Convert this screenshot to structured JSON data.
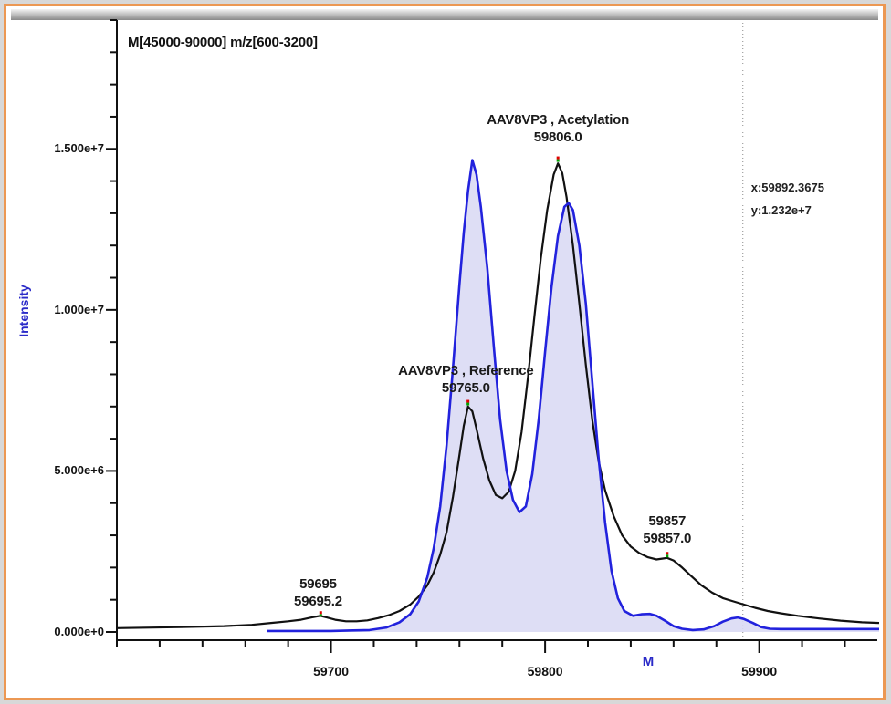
{
  "window": {
    "border_color": "#EC9853",
    "outer_bg": "#d8d8d8",
    "inner_bg": "#ffffff"
  },
  "title": "M[45000-90000] m/z[600-3200]",
  "cursor_readout": {
    "x_text": "x:59892.3675",
    "y_text": "y:1.232e+7",
    "mass": 59892.3675
  },
  "chart_data": {
    "type": "line",
    "title": "M[45000-90000] m/z[600-3200]",
    "xlabel": "M",
    "ylabel": "Intensity",
    "xlim": [
      59600,
      59956
    ],
    "ylim": [
      0,
      19000000
    ],
    "grid": false,
    "x_major_ticks": [
      {
        "value": 59700,
        "label": "59700"
      },
      {
        "value": 59800,
        "label": "59800"
      },
      {
        "value": 59900,
        "label": "59900"
      }
    ],
    "x_minor_step": 20,
    "y_major_ticks": [
      {
        "value": 0,
        "label": "0.000e+0"
      },
      {
        "value": 5000000,
        "label": "5.000e+6"
      },
      {
        "value": 10000000,
        "label": "1.000e+7"
      },
      {
        "value": 15000000,
        "label": "1.500e+7"
      }
    ],
    "y_minor_step": 1000000,
    "axis_title_color": "#2a2ac8",
    "series": [
      {
        "name": "Reference (blue filled trace)",
        "color": "#2222DD",
        "fill": "#DADAF4",
        "points": [
          [
            59670,
            30000
          ],
          [
            59700,
            30000
          ],
          [
            59718,
            60000
          ],
          [
            59726,
            140000
          ],
          [
            59732,
            300000
          ],
          [
            59737,
            550000
          ],
          [
            59741,
            950000
          ],
          [
            59745,
            1700000
          ],
          [
            59748,
            2600000
          ],
          [
            59751,
            3900000
          ],
          [
            59754,
            5800000
          ],
          [
            59757,
            8200000
          ],
          [
            59760,
            10800000
          ],
          [
            59762,
            12400000
          ],
          [
            59764,
            13700000
          ],
          [
            59766,
            14650000
          ],
          [
            59768,
            14200000
          ],
          [
            59770,
            13200000
          ],
          [
            59773,
            11300000
          ],
          [
            59776,
            8900000
          ],
          [
            59779,
            6600000
          ],
          [
            59782,
            5000000
          ],
          [
            59785,
            4100000
          ],
          [
            59788,
            3720000
          ],
          [
            59791,
            3900000
          ],
          [
            59794,
            4900000
          ],
          [
            59797,
            6600000
          ],
          [
            59800,
            8700000
          ],
          [
            59803,
            10700000
          ],
          [
            59806,
            12300000
          ],
          [
            59809,
            13200000
          ],
          [
            59811,
            13320000
          ],
          [
            59813,
            13100000
          ],
          [
            59816,
            12000000
          ],
          [
            59819,
            10200000
          ],
          [
            59822,
            7800000
          ],
          [
            59825,
            5400000
          ],
          [
            59828,
            3400000
          ],
          [
            59831,
            1900000
          ],
          [
            59834,
            1050000
          ],
          [
            59837,
            650000
          ],
          [
            59841,
            500000
          ],
          [
            59845,
            550000
          ],
          [
            59849,
            560000
          ],
          [
            59852,
            500000
          ],
          [
            59856,
            350000
          ],
          [
            59860,
            180000
          ],
          [
            59864,
            100000
          ],
          [
            59869,
            60000
          ],
          [
            59874,
            80000
          ],
          [
            59879,
            180000
          ],
          [
            59883,
            320000
          ],
          [
            59887,
            420000
          ],
          [
            59890,
            450000
          ],
          [
            59893,
            400000
          ],
          [
            59897,
            280000
          ],
          [
            59901,
            150000
          ],
          [
            59905,
            100000
          ],
          [
            59910,
            90000
          ],
          [
            59920,
            90000
          ],
          [
            59956,
            90000
          ]
        ]
      },
      {
        "name": "Acetylation (black trace)",
        "color": "#111111",
        "fill": null,
        "points": [
          [
            59600,
            120000
          ],
          [
            59630,
            150000
          ],
          [
            59650,
            180000
          ],
          [
            59663,
            220000
          ],
          [
            59672,
            280000
          ],
          [
            59680,
            330000
          ],
          [
            59686,
            380000
          ],
          [
            59691,
            450000
          ],
          [
            59695,
            500000
          ],
          [
            59698,
            450000
          ],
          [
            59702,
            380000
          ],
          [
            59707,
            330000
          ],
          [
            59712,
            330000
          ],
          [
            59717,
            360000
          ],
          [
            59722,
            430000
          ],
          [
            59727,
            520000
          ],
          [
            59732,
            650000
          ],
          [
            59737,
            850000
          ],
          [
            59741,
            1100000
          ],
          [
            59745,
            1450000
          ],
          [
            59748,
            1850000
          ],
          [
            59751,
            2400000
          ],
          [
            59754,
            3100000
          ],
          [
            59757,
            4200000
          ],
          [
            59760,
            5500000
          ],
          [
            59762,
            6400000
          ],
          [
            59764,
            7000000
          ],
          [
            59766,
            6850000
          ],
          [
            59768,
            6300000
          ],
          [
            59771,
            5400000
          ],
          [
            59774,
            4700000
          ],
          [
            59777,
            4250000
          ],
          [
            59780,
            4150000
          ],
          [
            59783,
            4350000
          ],
          [
            59786,
            5000000
          ],
          [
            59789,
            6200000
          ],
          [
            59792,
            7900000
          ],
          [
            59795,
            9800000
          ],
          [
            59798,
            11600000
          ],
          [
            59801,
            13100000
          ],
          [
            59804,
            14200000
          ],
          [
            59806,
            14550000
          ],
          [
            59808,
            14250000
          ],
          [
            59810,
            13500000
          ],
          [
            59813,
            12000000
          ],
          [
            59816,
            10200000
          ],
          [
            59819,
            8300000
          ],
          [
            59822,
            6600000
          ],
          [
            59825,
            5300000
          ],
          [
            59828,
            4400000
          ],
          [
            59832,
            3600000
          ],
          [
            59836,
            3000000
          ],
          [
            59840,
            2650000
          ],
          [
            59844,
            2450000
          ],
          [
            59848,
            2320000
          ],
          [
            59852,
            2250000
          ],
          [
            59855,
            2280000
          ],
          [
            59857,
            2300000
          ],
          [
            59860,
            2220000
          ],
          [
            59864,
            2000000
          ],
          [
            59868,
            1750000
          ],
          [
            59873,
            1450000
          ],
          [
            59878,
            1220000
          ],
          [
            59883,
            1050000
          ],
          [
            59888,
            950000
          ],
          [
            59893,
            850000
          ],
          [
            59898,
            750000
          ],
          [
            59904,
            650000
          ],
          [
            59910,
            580000
          ],
          [
            59918,
            500000
          ],
          [
            59928,
            420000
          ],
          [
            59938,
            350000
          ],
          [
            59948,
            300000
          ],
          [
            59956,
            280000
          ]
        ]
      }
    ],
    "annotations": [
      {
        "lines": [
          "59695",
          "59695.2"
        ],
        "mass": 59694,
        "bottom_value": 680000
      },
      {
        "lines": [
          "AAV8VP3 , Reference",
          "59765.0"
        ],
        "mass": 59763,
        "bottom_value": 7300000
      },
      {
        "lines": [
          "AAV8VP3 , Acetylation",
          "59806.0"
        ],
        "mass": 59806,
        "bottom_value": 15100000
      },
      {
        "lines": [
          "59857",
          "59857.0"
        ],
        "mass": 59857,
        "bottom_value": 2620000
      }
    ],
    "peak_markers": [
      {
        "mass": 59695.2,
        "value": 560000
      },
      {
        "mass": 59764,
        "value": 7120000
      },
      {
        "mass": 59806,
        "value": 14680000
      },
      {
        "mass": 59857,
        "value": 2400000
      }
    ],
    "marker_colors": {
      "top": "#e00000",
      "bottom": "#00a000"
    },
    "cursor_line_mass": 59892.3675
  }
}
